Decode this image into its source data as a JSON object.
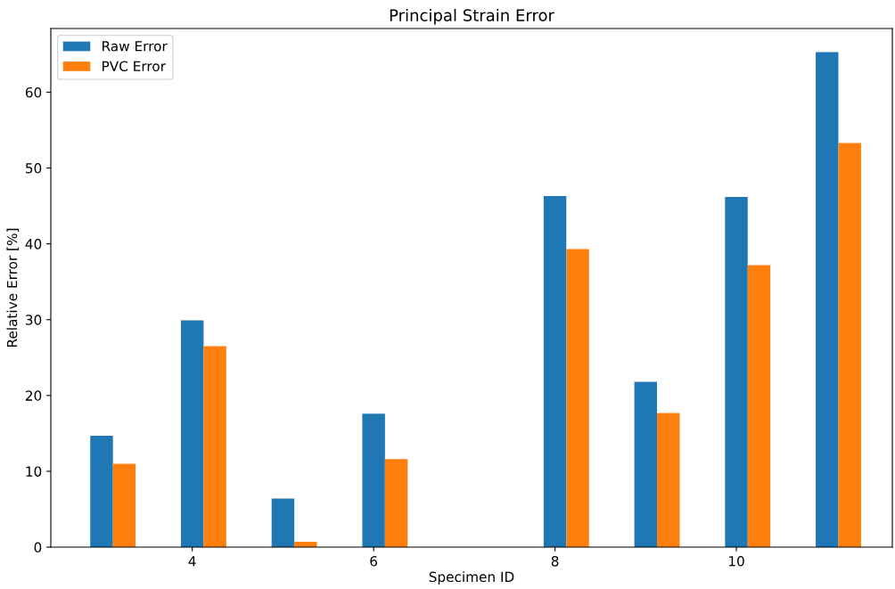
{
  "chart_data": {
    "type": "bar",
    "title": "Principal Strain Error",
    "xlabel": "Specimen ID",
    "ylabel": "Relative Error [%]",
    "x": [
      3,
      4,
      5,
      6,
      8,
      9,
      10,
      11
    ],
    "series": [
      {
        "name": "Raw Error",
        "color": "#1f77b4",
        "values": [
          14.7,
          29.9,
          6.4,
          17.6,
          46.3,
          21.8,
          46.2,
          65.3
        ]
      },
      {
        "name": "PVC Error",
        "color": "#ff7f0e",
        "values": [
          11.0,
          26.5,
          0.7,
          11.6,
          39.3,
          17.7,
          37.2,
          53.3
        ]
      }
    ],
    "xlim": [
      2.44,
      11.72
    ],
    "xticks": [
      4,
      6,
      8,
      10
    ],
    "ylim": [
      0,
      68.4
    ],
    "yticks": [
      0,
      10,
      20,
      30,
      40,
      50,
      60
    ],
    "grid": false,
    "legend": "top left"
  }
}
